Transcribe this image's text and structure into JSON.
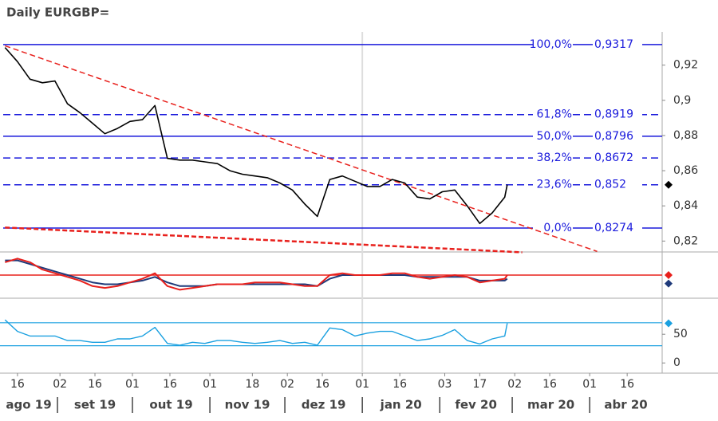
{
  "chart_data": {
    "type": "line",
    "title": "Daily EURGBP=",
    "xlim": [
      "2019-08-09",
      "2020-04-30"
    ],
    "xticks": [
      {
        "value": "2019-08-16",
        "label": "16"
      },
      {
        "value": "2019-09-02",
        "label": "02"
      },
      {
        "value": "2019-09-16",
        "label": "16"
      },
      {
        "value": "2019-10-01",
        "label": "01"
      },
      {
        "value": "2019-10-16",
        "label": "16"
      },
      {
        "value": "2019-11-01",
        "label": "01"
      },
      {
        "value": "2019-11-18",
        "label": "18"
      },
      {
        "value": "2019-12-02",
        "label": "02"
      },
      {
        "value": "2019-12-16",
        "label": "16"
      },
      {
        "value": "2020-01-01",
        "label": "01"
      },
      {
        "value": "2020-01-16",
        "label": "16"
      },
      {
        "value": "2020-02-03",
        "label": "03"
      },
      {
        "value": "2020-02-17",
        "label": "17"
      },
      {
        "value": "2020-03-02",
        "label": "02"
      },
      {
        "value": "2020-03-16",
        "label": "16"
      },
      {
        "value": "2020-04-01",
        "label": "01"
      },
      {
        "value": "2020-04-16",
        "label": "16"
      }
    ],
    "months": {
      "labels": [
        "ago 19",
        "set 19",
        "out 19",
        "nov 19",
        "dez 19",
        "jan 20",
        "fev 20",
        "mar 20",
        "abr 20"
      ],
      "starts": [
        "2019-08-01",
        "2019-09-01",
        "2019-10-01",
        "2019-11-01",
        "2019-12-01",
        "2020-01-01",
        "2020-02-01",
        "2020-03-01",
        "2020-04-01"
      ]
    },
    "x": [
      "2019-08-11",
      "2019-08-16",
      "2019-08-21",
      "2019-08-26",
      "2019-08-31",
      "2019-09-05",
      "2019-09-10",
      "2019-09-15",
      "2019-09-20",
      "2019-09-25",
      "2019-09-30",
      "2019-10-05",
      "2019-10-10",
      "2019-10-15",
      "2019-10-20",
      "2019-10-25",
      "2019-10-30",
      "2019-11-04",
      "2019-11-09",
      "2019-11-14",
      "2019-11-19",
      "2019-11-24",
      "2019-11-29",
      "2019-12-04",
      "2019-12-09",
      "2019-12-14",
      "2019-12-19",
      "2019-12-24",
      "2019-12-29",
      "2020-01-03",
      "2020-01-08",
      "2020-01-13",
      "2020-01-18",
      "2020-01-23",
      "2020-01-28",
      "2020-02-02",
      "2020-02-07",
      "2020-02-12",
      "2020-02-17",
      "2020-02-22",
      "2020-02-27",
      "2020-02-28"
    ],
    "ylim": [
      0.8138,
      0.9389
    ],
    "yticks": [
      {
        "value": 0.82,
        "label": "0,82"
      },
      {
        "value": 0.84,
        "label": "0,84"
      },
      {
        "value": 0.86,
        "label": "0,86"
      },
      {
        "value": 0.88,
        "label": "0,88"
      },
      {
        "value": 0.9,
        "label": "0,9"
      },
      {
        "value": 0.92,
        "label": "0,92"
      }
    ],
    "series": [
      {
        "name": "EURGBP=",
        "color": "#000000",
        "values": [
          0.93,
          0.922,
          0.912,
          0.91,
          0.911,
          0.898,
          0.893,
          0.887,
          0.881,
          0.884,
          0.888,
          0.889,
          0.897,
          0.867,
          0.866,
          0.866,
          0.865,
          0.864,
          0.86,
          0.858,
          0.857,
          0.856,
          0.853,
          0.849,
          0.841,
          0.834,
          0.855,
          0.857,
          0.854,
          0.851,
          0.851,
          0.855,
          0.853,
          0.845,
          0.844,
          0.848,
          0.849,
          0.84,
          0.83,
          0.836,
          0.845,
          0.852
        ]
      }
    ],
    "fib_levels": {
      "names": [
        "100,0%",
        "61,8%",
        "50,0%",
        "38,2%",
        "23,6%",
        "0,0%"
      ],
      "values": [
        0.9317,
        0.8919,
        0.8796,
        0.8672,
        0.852,
        0.8274
      ],
      "value_labels": [
        "0,9317",
        "0,8919",
        "0,8796",
        "0,8672",
        "0,852",
        "0,8274"
      ],
      "styles": [
        "solid",
        "dashed",
        "solid",
        "dashed",
        "dashed",
        "solid"
      ],
      "color": "#1a1adc"
    },
    "trendlines": [
      {
        "x": [
          "2019-08-11",
          "2020-04-04"
        ],
        "y": [
          0.931,
          0.8141
        ],
        "color": "#e8201c"
      },
      {
        "x": [
          "2019-08-11",
          "2020-03-05"
        ],
        "y": [
          0.8277,
          0.8136
        ],
        "color": "#e8201c"
      }
    ],
    "macd": {
      "ylim": [
        -0.01,
        0.01
      ],
      "zero": 0,
      "series": [
        {
          "color": "#1f3a7a",
          "values": [
            0.008,
            0.008,
            0.006,
            0.004,
            0.002,
            0.0,
            -0.002,
            -0.004,
            -0.005,
            -0.005,
            -0.004,
            -0.003,
            -0.001,
            -0.004,
            -0.006,
            -0.006,
            -0.006,
            -0.005,
            -0.005,
            -0.005,
            -0.005,
            -0.005,
            -0.005,
            -0.005,
            -0.005,
            -0.006,
            -0.002,
            0.0,
            0.0,
            0.0,
            0.0,
            0.0,
            0.0,
            -0.001,
            -0.001,
            -0.001,
            -0.001,
            -0.001,
            -0.003,
            -0.003,
            -0.003,
            -0.002
          ]
        },
        {
          "color": "#e8201c",
          "values": [
            0.007,
            0.009,
            0.007,
            0.003,
            0.001,
            -0.001,
            -0.003,
            -0.006,
            -0.007,
            -0.006,
            -0.004,
            -0.002,
            0.001,
            -0.006,
            -0.008,
            -0.007,
            -0.006,
            -0.005,
            -0.005,
            -0.005,
            -0.004,
            -0.004,
            -0.004,
            -0.005,
            -0.006,
            -0.006,
            0.0,
            0.001,
            0.0,
            0.0,
            0.0,
            0.001,
            0.001,
            -0.001,
            -0.002,
            -0.001,
            0.0,
            -0.001,
            -0.004,
            -0.003,
            -0.002,
            0.0
          ]
        }
      ]
    },
    "rsi": {
      "ylim": [
        -15,
        110
      ],
      "yticks": [
        0,
        50
      ],
      "bands": [
        70,
        30
      ],
      "color": "#1aa0e0",
      "values": [
        75,
        55,
        47,
        47,
        47,
        39,
        39,
        36,
        36,
        42,
        42,
        47,
        62,
        34,
        31,
        36,
        34,
        39,
        39,
        36,
        34,
        36,
        39,
        34,
        36,
        31,
        61,
        58,
        47,
        52,
        55,
        55,
        47,
        39,
        42,
        48,
        58,
        39,
        33,
        42,
        47,
        69
      ]
    }
  }
}
